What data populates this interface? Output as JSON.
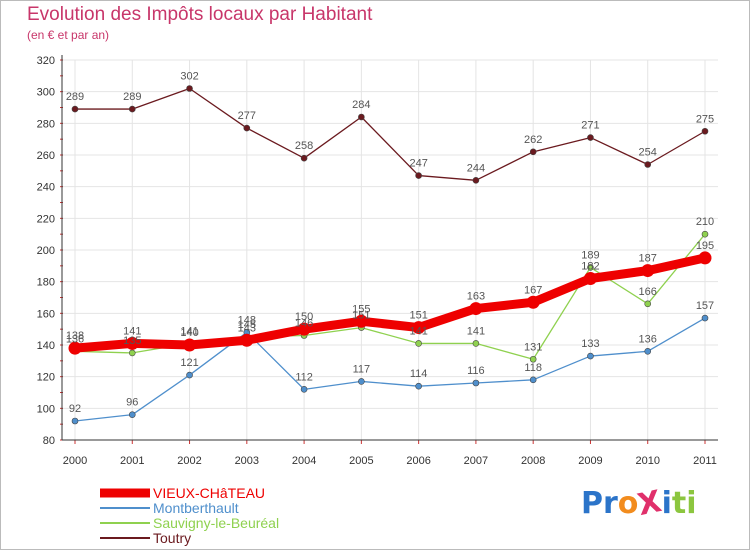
{
  "title": "Evolution des Impôts locaux par Habitant",
  "subtitle": "(en € et par an)",
  "logo": {
    "text": "ProXiti",
    "letters": [
      "P",
      "r",
      "o",
      "X",
      "i",
      "t",
      "i"
    ],
    "colors": [
      "#2b74c9",
      "#2b74c9",
      "#f28c1e",
      "#e0306b",
      "#2b74c9",
      "#8cc63f",
      "#8cc63f"
    ]
  },
  "chart_data": {
    "type": "line",
    "title": "Evolution des Impôts locaux par Habitant",
    "subtitle": "(en € et par an)",
    "xlabel": "",
    "ylabel": "",
    "x": [
      "2000",
      "2001",
      "2002",
      "2003",
      "2004",
      "2005",
      "2006",
      "2007",
      "2008",
      "2009",
      "2010",
      "2011"
    ],
    "ylim": [
      80,
      320
    ],
    "yticks": [
      "80",
      "100",
      "120",
      "140",
      "160",
      "180",
      "200",
      "220",
      "240",
      "260",
      "280",
      "300",
      "320"
    ],
    "grid": true,
    "legend_position": "bottom-left",
    "series": [
      {
        "name": "Toutry",
        "color": "#6b1a1f",
        "values": [
          289,
          289,
          302,
          277,
          258,
          284,
          247,
          244,
          262,
          271,
          254,
          275
        ],
        "labels": [
          "289",
          "289",
          "302",
          "277",
          "258",
          "284",
          "247",
          "244",
          "262",
          "271",
          "254",
          "275"
        ]
      },
      {
        "name": "Montberthault",
        "color": "#4f8fcc",
        "values": [
          92,
          96,
          121,
          148,
          112,
          117,
          114,
          116,
          118,
          133,
          136,
          157
        ],
        "labels": [
          "92",
          "96",
          "121",
          "148",
          "112",
          "117",
          "114",
          "116",
          "118",
          "133",
          "136",
          "157"
        ]
      },
      {
        "name": "Sauvigny-le-Beuréal",
        "color": "#8fd14f",
        "values": [
          136,
          135,
          141,
          145,
          146,
          151,
          141,
          141,
          131,
          189,
          166,
          210
        ],
        "labels": [
          "136",
          "135",
          "141",
          "145",
          "146",
          "151",
          "141",
          "141",
          "131",
          "189",
          "166",
          "210"
        ]
      },
      {
        "name": "VIEUX-CHâTEAU",
        "color": "#ee0000",
        "values": [
          138,
          141,
          140,
          143,
          150,
          155,
          151,
          163,
          167,
          182,
          187,
          195
        ],
        "labels": [
          "138",
          "141",
          "140",
          "143",
          "150",
          "155",
          "151",
          "163",
          "167",
          "182",
          "187",
          "195"
        ]
      }
    ],
    "legend": [
      {
        "name": "VIEUX-CHâTEAU",
        "color": "#ee0000"
      },
      {
        "name": "Montberthault",
        "color": "#4f8fcc"
      },
      {
        "name": "Sauvigny-le-Beuréal",
        "color": "#8fd14f"
      },
      {
        "name": "Toutry",
        "color": "#6b1a1f"
      }
    ]
  }
}
